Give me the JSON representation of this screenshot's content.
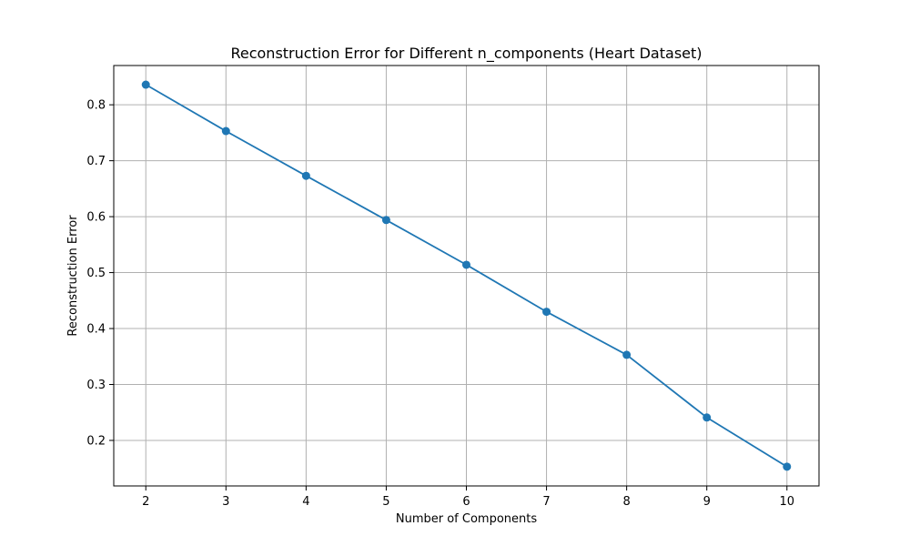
{
  "chart_data": {
    "type": "line",
    "title": "Reconstruction Error for Different n_components (Heart Dataset)",
    "xlabel": "Number of Components",
    "ylabel": "Reconstruction Error",
    "x": [
      2,
      3,
      4,
      5,
      6,
      7,
      8,
      9,
      10
    ],
    "series": [
      {
        "values": [
          0.836,
          0.753,
          0.673,
          0.594,
          0.514,
          0.43,
          0.353,
          0.241,
          0.153
        ],
        "color": "#1f77b4",
        "marker": "circle"
      }
    ],
    "xticks": [
      "2",
      "3",
      "4",
      "5",
      "6",
      "7",
      "8",
      "9",
      "10"
    ],
    "yticks": [
      "0.2",
      "0.3",
      "0.4",
      "0.5",
      "0.6",
      "0.7",
      "0.8"
    ],
    "xlim": [
      1.6,
      10.4
    ],
    "ylim": [
      0.1186,
      0.8702
    ],
    "grid": true,
    "grid_color": "#b0b0b0"
  }
}
